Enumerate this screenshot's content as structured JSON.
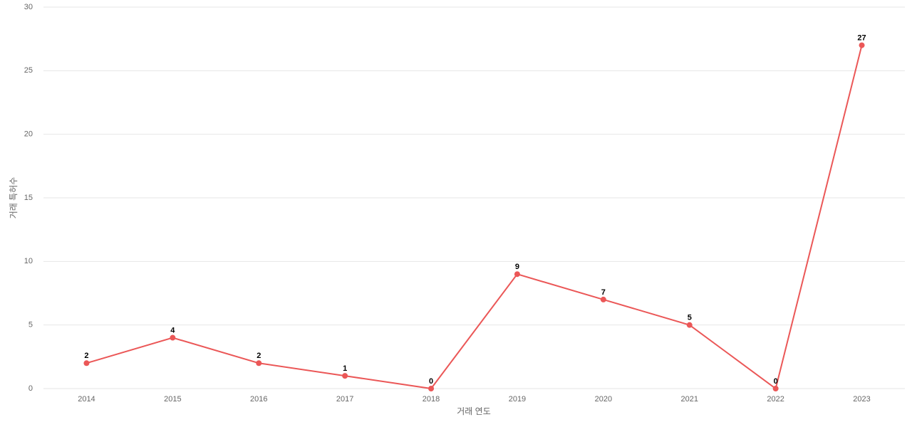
{
  "chart_data": {
    "type": "line",
    "x_label": "거래 연도",
    "y_label": "거래 특허수",
    "categories": [
      "2014",
      "2015",
      "2016",
      "2017",
      "2018",
      "2019",
      "2020",
      "2021",
      "2022",
      "2023"
    ],
    "series": [
      {
        "color": "#eb5757",
        "values": [
          2,
          4,
          2,
          1,
          0,
          9,
          7,
          5,
          0,
          27
        ]
      }
    ],
    "ylim": [
      0,
      30
    ],
    "yticks": [
      0,
      5,
      10,
      15,
      20,
      25,
      30
    ],
    "grid": true
  }
}
